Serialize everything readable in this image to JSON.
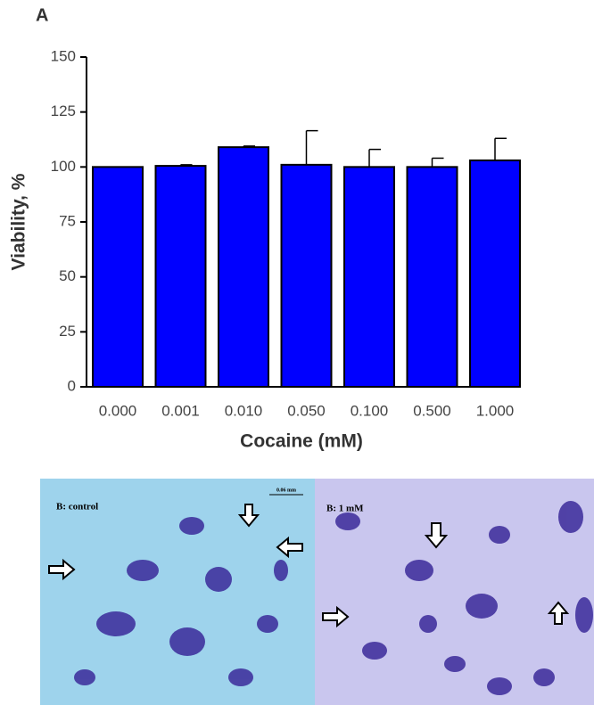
{
  "panel_label": "A",
  "chart_data": {
    "type": "bar",
    "categories": [
      "0.000",
      "0.001",
      "0.010",
      "0.050",
      "0.100",
      "0.500",
      "1.000"
    ],
    "values": [
      100,
      100.5,
      109,
      101,
      100,
      100,
      103
    ],
    "errors": [
      0,
      0.5,
      0.5,
      15.5,
      8,
      4,
      10
    ],
    "color": "#0000ff",
    "ylim": [
      0,
      150
    ],
    "yticks": [
      0,
      25,
      50,
      75,
      100,
      125,
      150
    ],
    "ylabel": "Viability, %",
    "xlabel": "Cocaine (mM)"
  },
  "panel_b": {
    "left_label": "B: control",
    "scale_bar": "0.06 mm",
    "right_label": "B: 1 mM"
  }
}
